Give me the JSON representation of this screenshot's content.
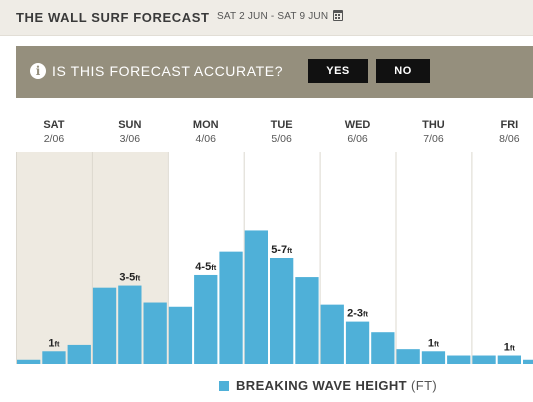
{
  "header": {
    "title": "THE WALL SURF FORECAST",
    "date_range": "SAT 2 JUN - SAT 9 JUN",
    "calendar_icon": "calendar-icon"
  },
  "banner": {
    "icon": "info-icon",
    "question": "IS THIS FORECAST ACCURATE?",
    "yes_label": "YES",
    "no_label": "NO",
    "background": "#958f7d"
  },
  "chart_data": {
    "type": "bar",
    "days": [
      {
        "day": "SAT",
        "date": "2/06"
      },
      {
        "day": "SUN",
        "date": "3/06"
      },
      {
        "day": "MON",
        "date": "4/06"
      },
      {
        "day": "TUE",
        "date": "5/06"
      },
      {
        "day": "WED",
        "date": "6/06"
      },
      {
        "day": "THU",
        "date": "7/06"
      },
      {
        "day": "FRI",
        "date": "8/06"
      }
    ],
    "bars_per_day": 3,
    "values": [
      0.2,
      0.6,
      0.9,
      3.6,
      3.7,
      2.9,
      2.7,
      4.2,
      5.3,
      6.3,
      5.0,
      4.1,
      2.8,
      2.0,
      1.5,
      0.7,
      0.6,
      0.4,
      0.4,
      0.4,
      0.2
    ],
    "ylim": [
      0,
      10
    ],
    "data_labels": [
      {
        "bar": 1,
        "value": "1",
        "unit": "ft"
      },
      {
        "bar": 4,
        "value": "3-5",
        "unit": "ft"
      },
      {
        "bar": 7,
        "value": "4-5",
        "unit": "ft"
      },
      {
        "bar": 10,
        "value": "5-7",
        "unit": "ft"
      },
      {
        "bar": 13,
        "value": "2-3",
        "unit": "ft"
      },
      {
        "bar": 16,
        "value": "1",
        "unit": "ft"
      },
      {
        "bar": 19,
        "value": "1",
        "unit": "ft"
      }
    ],
    "past_days": 2,
    "bar_color": "#4fb0d8",
    "past_shade_color": "#eeeae1",
    "legend": {
      "label": "BREAKING WAVE HEIGHT",
      "unit": "(FT)"
    }
  }
}
